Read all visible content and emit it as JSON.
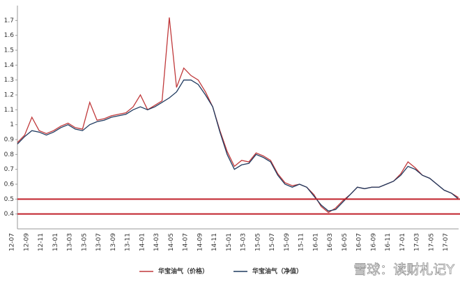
{
  "chart_data": {
    "type": "line",
    "categories": [
      "12-07",
      null,
      "12-09",
      null,
      "12-11",
      null,
      "13-01",
      null,
      "13-03",
      null,
      "13-05",
      null,
      "13-07",
      null,
      "13-09",
      null,
      "13-11",
      null,
      "14-01",
      null,
      "14-03",
      null,
      "14-05",
      null,
      "14-07",
      null,
      "14-09",
      null,
      "14-11",
      null,
      "15-01",
      null,
      "15-03",
      null,
      "15-05",
      null,
      "15-07",
      null,
      "15-09",
      null,
      "15-11",
      null,
      "16-01",
      null,
      "16-03",
      null,
      "16-05",
      null,
      "16-07",
      null,
      "16-09",
      null,
      "16-11",
      null,
      "17-01",
      null,
      "17-03",
      null,
      "17-05",
      null,
      "17-07",
      null
    ],
    "series": [
      {
        "name": "华宝油气（价格）",
        "color": "#c0393b",
        "values": [
          0.88,
          0.93,
          1.05,
          0.96,
          0.94,
          0.96,
          0.99,
          1.01,
          0.98,
          0.97,
          1.15,
          1.03,
          1.04,
          1.06,
          1.07,
          1.08,
          1.12,
          1.2,
          1.1,
          1.13,
          1.16,
          1.72,
          1.25,
          1.38,
          1.33,
          1.3,
          1.22,
          1.12,
          0.96,
          0.82,
          0.72,
          0.76,
          0.75,
          0.81,
          0.79,
          0.76,
          0.67,
          0.61,
          0.59,
          0.6,
          0.58,
          0.53,
          0.45,
          0.41,
          0.44,
          0.49,
          0.53,
          0.58,
          0.57,
          0.58,
          0.58,
          0.6,
          0.62,
          0.67,
          0.75,
          0.71,
          0.66,
          0.64,
          0.6,
          0.56,
          0.54,
          0.51
        ]
      },
      {
        "name": "华宝油气（净值）",
        "color": "#1f3a5f",
        "values": [
          0.87,
          0.92,
          0.96,
          0.95,
          0.93,
          0.95,
          0.98,
          1.0,
          0.97,
          0.96,
          1.0,
          1.02,
          1.03,
          1.05,
          1.06,
          1.07,
          1.1,
          1.12,
          1.1,
          1.12,
          1.15,
          1.18,
          1.22,
          1.3,
          1.3,
          1.27,
          1.2,
          1.12,
          0.95,
          0.8,
          0.7,
          0.73,
          0.74,
          0.8,
          0.78,
          0.75,
          0.66,
          0.6,
          0.58,
          0.6,
          0.58,
          0.52,
          0.46,
          0.42,
          0.43,
          0.48,
          0.53,
          0.58,
          0.57,
          0.58,
          0.58,
          0.6,
          0.62,
          0.66,
          0.72,
          0.7,
          0.66,
          0.64,
          0.6,
          0.56,
          0.54,
          0.5
        ]
      }
    ],
    "ylim": [
      0.3,
      1.8
    ],
    "yticks": [
      0.4,
      0.5,
      0.6,
      0.7,
      0.8,
      0.9,
      1,
      1.1,
      1.2,
      1.3,
      1.4,
      1.5,
      1.6,
      1.7
    ],
    "reference_lines": [
      0.5,
      0.4
    ],
    "reference_color": "#c0202a",
    "watermark": "雪球：读财札记Y"
  }
}
